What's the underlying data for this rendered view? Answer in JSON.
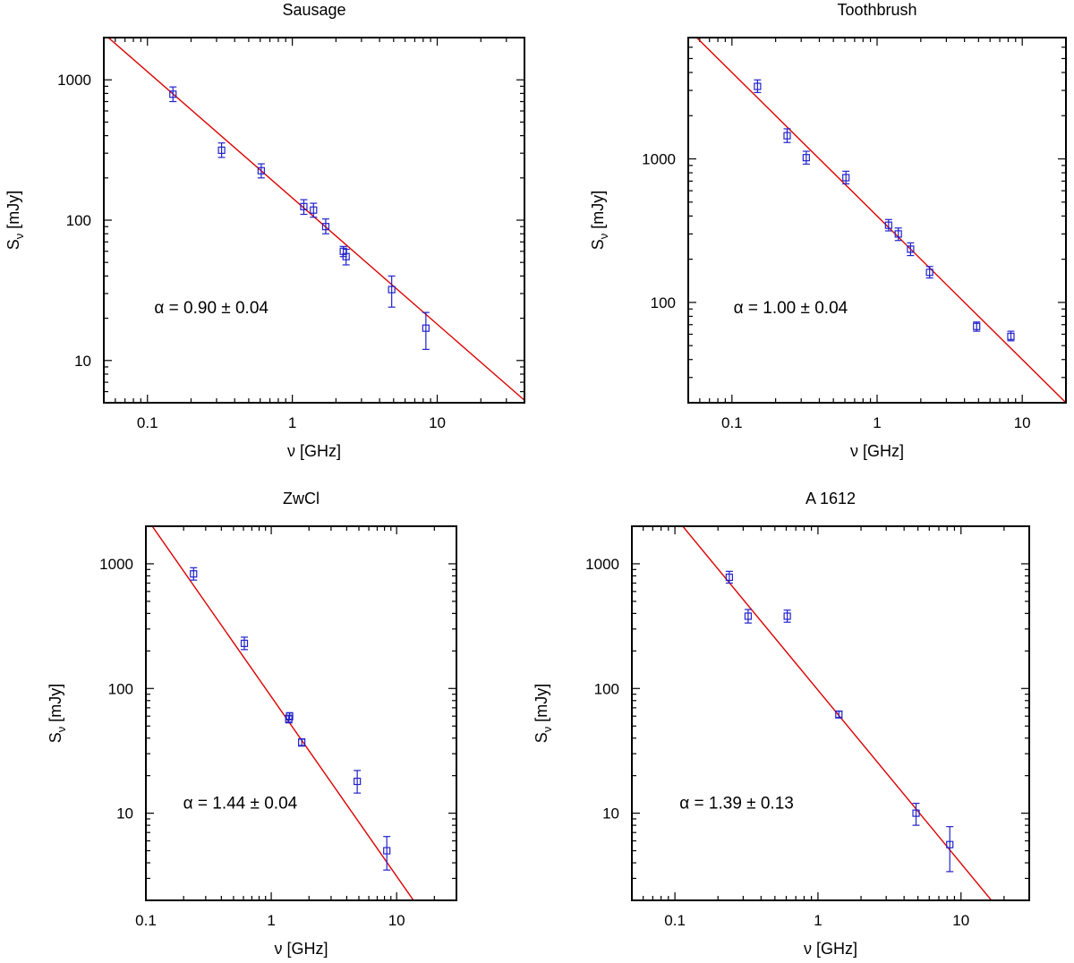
{
  "chart_data": [
    {
      "type": "scatter",
      "title": "Sausage",
      "xlabel": "ν [GHz]",
      "ylabel_main": "S",
      "ylabel_sub": "ν",
      "ylabel_unit": " [mJy]",
      "xscale": "log",
      "yscale": "log",
      "xlim": [
        0.05,
        40
      ],
      "ylim": [
        5,
        2000
      ],
      "xticks": [
        {
          "v": 0.1,
          "label": "0.1"
        },
        {
          "v": 1,
          "label": "1"
        },
        {
          "v": 10,
          "label": "10"
        }
      ],
      "yticks": [
        {
          "v": 10,
          "label": "10"
        },
        {
          "v": 100,
          "label": "100"
        },
        {
          "v": 1000,
          "label": "1000"
        }
      ],
      "annotation": "α = 0.90 ± 0.04",
      "fit": {
        "slope": -0.9,
        "amp": 144
      },
      "points": [
        {
          "x": 0.15,
          "y": 790,
          "lo": 700,
          "hi": 890
        },
        {
          "x": 0.325,
          "y": 315,
          "lo": 280,
          "hi": 355
        },
        {
          "x": 0.61,
          "y": 225,
          "lo": 200,
          "hi": 252
        },
        {
          "x": 1.2,
          "y": 125,
          "lo": 110,
          "hi": 140
        },
        {
          "x": 1.4,
          "y": 118,
          "lo": 105,
          "hi": 132
        },
        {
          "x": 1.7,
          "y": 90,
          "lo": 80,
          "hi": 102
        },
        {
          "x": 2.25,
          "y": 60,
          "lo": 55,
          "hi": 65
        },
        {
          "x": 2.35,
          "y": 55,
          "lo": 48,
          "hi": 62
        },
        {
          "x": 4.85,
          "y": 32,
          "lo": 24,
          "hi": 40
        },
        {
          "x": 8.35,
          "y": 17,
          "lo": 12,
          "hi": 22
        }
      ]
    },
    {
      "type": "scatter",
      "title": "Toothbrush",
      "xlabel": "ν [GHz]",
      "ylabel_main": "S",
      "ylabel_sub": "ν",
      "ylabel_unit": " [mJy]",
      "xscale": "log",
      "yscale": "log",
      "xlim": [
        0.05,
        20
      ],
      "ylim": [
        20,
        7000
      ],
      "xticks": [
        {
          "v": 0.1,
          "label": "0.1"
        },
        {
          "v": 1,
          "label": "1"
        },
        {
          "v": 10,
          "label": "10"
        }
      ],
      "yticks": [
        {
          "v": 100,
          "label": "100"
        },
        {
          "v": 1000,
          "label": "1000"
        }
      ],
      "annotation": "α = 1.00 ± 0.04",
      "fit": {
        "slope": -1.0,
        "amp": 400
      },
      "points": [
        {
          "x": 0.15,
          "y": 3200,
          "lo": 2900,
          "hi": 3550
        },
        {
          "x": 0.24,
          "y": 1450,
          "lo": 1300,
          "hi": 1620
        },
        {
          "x": 0.325,
          "y": 1020,
          "lo": 920,
          "hi": 1130
        },
        {
          "x": 0.61,
          "y": 740,
          "lo": 670,
          "hi": 820
        },
        {
          "x": 1.2,
          "y": 345,
          "lo": 315,
          "hi": 378
        },
        {
          "x": 1.4,
          "y": 300,
          "lo": 270,
          "hi": 330
        },
        {
          "x": 1.7,
          "y": 235,
          "lo": 212,
          "hi": 260
        },
        {
          "x": 2.3,
          "y": 162,
          "lo": 148,
          "hi": 178
        },
        {
          "x": 4.85,
          "y": 68,
          "lo": 63,
          "hi": 73
        },
        {
          "x": 8.35,
          "y": 58,
          "lo": 54,
          "hi": 63
        }
      ]
    },
    {
      "type": "scatter",
      "title": "ZwCl",
      "xlabel": "ν [GHz]",
      "ylabel_main": "S",
      "ylabel_sub": "ν",
      "ylabel_unit": " [mJy]",
      "xscale": "log",
      "yscale": "log",
      "xlim": [
        0.1,
        30
      ],
      "ylim": [
        2,
        2000
      ],
      "xticks": [
        {
          "v": 0.1,
          "label": "0.1"
        },
        {
          "v": 1,
          "label": "1"
        },
        {
          "v": 10,
          "label": "10"
        }
      ],
      "yticks": [
        {
          "v": 10,
          "label": "10"
        },
        {
          "v": 100,
          "label": "100"
        },
        {
          "v": 1000,
          "label": "1000"
        }
      ],
      "annotation": "α = 1.44 ± 0.04",
      "fit": {
        "slope": -1.44,
        "amp": 86
      },
      "points": [
        {
          "x": 0.24,
          "y": 830,
          "lo": 740,
          "hi": 930
        },
        {
          "x": 0.61,
          "y": 230,
          "lo": 205,
          "hi": 258
        },
        {
          "x": 1.38,
          "y": 57,
          "lo": 53,
          "hi": 61
        },
        {
          "x": 1.4,
          "y": 60,
          "lo": 56,
          "hi": 64
        },
        {
          "x": 1.75,
          "y": 37,
          "lo": 34.5,
          "hi": 39.5
        },
        {
          "x": 4.85,
          "y": 18,
          "lo": 14.5,
          "hi": 22
        },
        {
          "x": 8.35,
          "y": 5,
          "lo": 3.5,
          "hi": 6.5
        }
      ]
    },
    {
      "type": "scatter",
      "title": "A 1612",
      "xlabel": "ν [GHz]",
      "ylabel_main": "S",
      "ylabel_sub": "ν",
      "ylabel_unit": " [mJy]",
      "xscale": "log",
      "yscale": "log",
      "xlim": [
        0.05,
        30
      ],
      "ylim": [
        2,
        2000
      ],
      "xticks": [
        {
          "v": 0.1,
          "label": "0.1"
        },
        {
          "v": 1,
          "label": "1"
        },
        {
          "v": 10,
          "label": "10"
        }
      ],
      "yticks": [
        {
          "v": 10,
          "label": "10"
        },
        {
          "v": 100,
          "label": "100"
        },
        {
          "v": 1000,
          "label": "1000"
        }
      ],
      "annotation": "α = 1.39 ± 0.13",
      "fit": {
        "slope": -1.39,
        "amp": 97
      },
      "points": [
        {
          "x": 0.24,
          "y": 780,
          "lo": 700,
          "hi": 870
        },
        {
          "x": 0.325,
          "y": 380,
          "lo": 335,
          "hi": 430
        },
        {
          "x": 0.61,
          "y": 380,
          "lo": 340,
          "hi": 425
        },
        {
          "x": 1.4,
          "y": 62,
          "lo": 58,
          "hi": 66
        },
        {
          "x": 4.85,
          "y": 10,
          "lo": 8,
          "hi": 12
        },
        {
          "x": 8.35,
          "y": 5.6,
          "lo": 3.4,
          "hi": 7.8
        }
      ]
    }
  ]
}
